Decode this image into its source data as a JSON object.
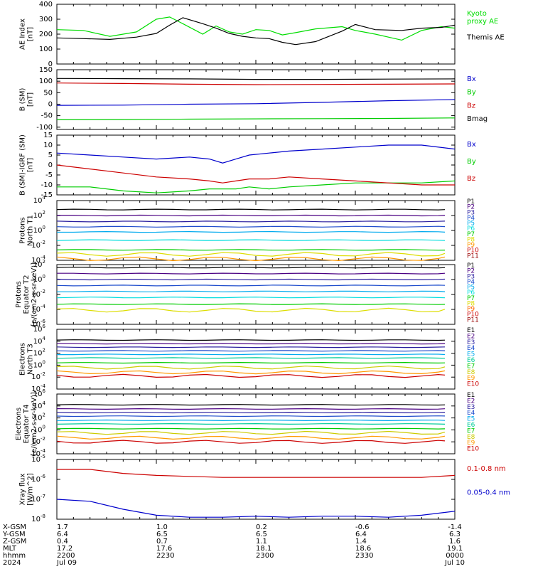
{
  "x_axis": {
    "row_labels": [
      "X-GSM",
      "Y-GSM",
      "Z-GSM",
      "MLT",
      "hhmm",
      "2024"
    ],
    "columns": [
      {
        "values": [
          "1.7",
          "6.4",
          "0.4",
          "17.2",
          "2200",
          "Jul 09"
        ]
      },
      {
        "values": [
          "1.0",
          "6.5",
          "0.7",
          "17.6",
          "2230",
          ""
        ]
      },
      {
        "values": [
          "0.2",
          "6.5",
          "1.1",
          "18.1",
          "2300",
          ""
        ]
      },
      {
        "values": [
          "-0.6",
          "6.4",
          "1.4",
          "18.6",
          "2330",
          ""
        ]
      },
      {
        "values": [
          "-1.4",
          "6.3",
          "1.6",
          "19.1",
          "0000",
          "Jul 10"
        ]
      }
    ]
  },
  "chart_data": [
    {
      "type": "line",
      "ylabel": "AE Index\n[nT]",
      "ylim": [
        0,
        400
      ],
      "yticks": [
        "0",
        "100",
        "200",
        "300",
        "400"
      ],
      "x": [
        0,
        8,
        16,
        24,
        30,
        34,
        38,
        44,
        48,
        52,
        56,
        60,
        64,
        68,
        72,
        78,
        86,
        90,
        96,
        104,
        110,
        116,
        120
      ],
      "series": [
        {
          "name": "Kyoto\nproxy AE",
          "color": "#00dd00",
          "values": [
            230,
            225,
            185,
            215,
            300,
            315,
            270,
            200,
            255,
            215,
            200,
            230,
            225,
            195,
            210,
            235,
            250,
            225,
            200,
            160,
            225,
            250,
            240
          ]
        },
        {
          "name": "Themis AE",
          "color": "#000000",
          "values": [
            175,
            170,
            165,
            180,
            205,
            260,
            310,
            270,
            240,
            205,
            185,
            175,
            170,
            145,
            130,
            150,
            220,
            265,
            230,
            225,
            240,
            245,
            260
          ]
        }
      ],
      "legend_placement": "right"
    },
    {
      "type": "line",
      "ylabel": "B (SM)\n[nT]",
      "ylim": [
        -110,
        150
      ],
      "yticks": [
        "-100",
        "-50",
        "0",
        "50",
        "100",
        "150"
      ],
      "x": [
        0,
        20,
        40,
        60,
        80,
        100,
        120
      ],
      "series": [
        {
          "name": "Bx",
          "color": "#0000cc",
          "values": [
            -5,
            -4,
            0,
            2,
            8,
            15,
            20
          ]
        },
        {
          "name": "By",
          "color": "#00cc00",
          "values": [
            -68,
            -67,
            -65,
            -64,
            -63,
            -62,
            -60
          ]
        },
        {
          "name": "Bz",
          "color": "#cc0000",
          "values": [
            92,
            90,
            87,
            85,
            86,
            87,
            88
          ]
        },
        {
          "name": "Bmag",
          "color": "#000000",
          "values": [
            112,
            111,
            110,
            108,
            108,
            109,
            110
          ]
        }
      ],
      "legend_placement": "right"
    },
    {
      "type": "line",
      "ylabel": "B (SM)-IGRF (SM)\n[nT]",
      "ylim": [
        -15,
        15
      ],
      "yticks": [
        "-15",
        "-10",
        "-5",
        "0",
        "5",
        "10",
        "15"
      ],
      "x": [
        0,
        10,
        20,
        30,
        40,
        46,
        50,
        54,
        58,
        64,
        70,
        80,
        90,
        100,
        110,
        120
      ],
      "series": [
        {
          "name": "Bx",
          "color": "#0000cc",
          "values": [
            6,
            5,
            4,
            3,
            4,
            3,
            1,
            3,
            5,
            6,
            7,
            8,
            9,
            10,
            10,
            8
          ]
        },
        {
          "name": "By",
          "color": "#00cc00",
          "values": [
            -11,
            -11,
            -13,
            -14,
            -13,
            -12,
            -12,
            -12,
            -11,
            -12,
            -11,
            -10,
            -9,
            -9,
            -9,
            -8
          ]
        },
        {
          "name": "Bz",
          "color": "#cc0000",
          "values": [
            0,
            -2,
            -4,
            -6,
            -7,
            -8,
            -9,
            -8,
            -7,
            -7,
            -6,
            -7,
            -8,
            -9,
            -10,
            -10
          ]
        }
      ],
      "legend_placement": "right"
    },
    {
      "type": "line",
      "ylabel": "Protons\nNorth T1",
      "log_scale": true,
      "ylim_exp": [
        -4,
        4
      ],
      "yticks": [
        "10^-4",
        "10^-2",
        "10^0",
        "10^2",
        "10^4"
      ],
      "legend": [
        "P1",
        "P2",
        "P3",
        "P4",
        "P5",
        "P6",
        "P7",
        "P8",
        "P9",
        "P10",
        "P11"
      ],
      "series": [
        {
          "name": "P1",
          "color": "#000000",
          "exp_level": 2.8
        },
        {
          "name": "P2",
          "color": "#4b0082",
          "exp_level": 2.0
        },
        {
          "name": "P3",
          "color": "#2b1f9f",
          "exp_level": 1.2
        },
        {
          "name": "P4",
          "color": "#1f4dcc",
          "exp_level": 0.5
        },
        {
          "name": "P5",
          "color": "#00aaee",
          "exp_level": -0.2
        },
        {
          "name": "P6",
          "color": "#00dddd",
          "exp_level": -1.3
        },
        {
          "name": "P7",
          "color": "#00cc00",
          "exp_level": -2.6
        },
        {
          "name": "P8",
          "color": "#dddd00",
          "exp_level": -3.2
        },
        {
          "name": "P9",
          "color": "#ff9900",
          "exp_level": -3.8
        },
        {
          "name": "P10",
          "color": "#cc0000",
          "exp_level": -4.5
        },
        {
          "name": "P11",
          "color": "#990000",
          "exp_level": -5.0
        }
      ]
    },
    {
      "type": "line",
      "ylabel": "Protons\nEquator T2\n[p/(cm2-s-sr-keV)]",
      "log_scale": true,
      "ylim_exp": [
        -6,
        2
      ],
      "yticks": [
        "10^-6",
        "10^-4",
        "10^-2",
        "10^0",
        "10^2"
      ],
      "legend": [
        "P1",
        "P2",
        "P3",
        "P4",
        "P5",
        "P6",
        "P7",
        "P8",
        "P9",
        "P10",
        "P11"
      ],
      "series": [
        {
          "name": "P1",
          "color": "#000000",
          "exp_level": 1.6
        },
        {
          "name": "P2",
          "color": "#4b0082",
          "exp_level": 0.8
        },
        {
          "name": "P3",
          "color": "#2b1f9f",
          "exp_level": 0.0
        },
        {
          "name": "P4",
          "color": "#1f4dcc",
          "exp_level": -0.8
        },
        {
          "name": "P5",
          "color": "#00aaee",
          "exp_level": -1.6
        },
        {
          "name": "P6",
          "color": "#00dddd",
          "exp_level": -2.4
        },
        {
          "name": "P7",
          "color": "#00cc00",
          "exp_level": -3.3
        },
        {
          "name": "P8",
          "color": "#dddd00",
          "exp_level": -4.1
        }
      ]
    },
    {
      "type": "line",
      "ylabel": "Electrons\nNorth T3",
      "log_scale": true,
      "ylim_exp": [
        -4,
        6
      ],
      "yticks": [
        "10^-4",
        "10^-2",
        "10^0",
        "10^2",
        "10^4",
        "10^6"
      ],
      "legend": [
        "E1",
        "E2",
        "E3",
        "E4",
        "E5",
        "E6",
        "E7",
        "E8",
        "E9",
        "E10"
      ],
      "series": [
        {
          "name": "E1",
          "color": "#000000",
          "exp_level": 4.2
        },
        {
          "name": "E2",
          "color": "#4b0082",
          "exp_level": 3.6
        },
        {
          "name": "E3",
          "color": "#2b1f9f",
          "exp_level": 3.0
        },
        {
          "name": "E4",
          "color": "#1f4dcc",
          "exp_level": 2.4
        },
        {
          "name": "E5",
          "color": "#00aaee",
          "exp_level": 1.8
        },
        {
          "name": "E6",
          "color": "#00cc99",
          "exp_level": 1.2
        },
        {
          "name": "E7",
          "color": "#00cc00",
          "exp_level": 0.4
        },
        {
          "name": "E8",
          "color": "#cccc00",
          "exp_level": -0.4
        },
        {
          "name": "E9",
          "color": "#ff9900",
          "exp_level": -1.2
        },
        {
          "name": "E10",
          "color": "#cc0000",
          "exp_level": -1.8
        }
      ]
    },
    {
      "type": "line",
      "ylabel": "Electrons\nEquator T4\n[e/(cm2-s-sr-keV)]",
      "log_scale": true,
      "ylim_exp": [
        -4,
        6
      ],
      "yticks": [
        "10^-4",
        "10^-2",
        "10^0",
        "10^2",
        "10^4",
        "10^6"
      ],
      "legend": [
        "E1",
        "E2",
        "E3",
        "E4",
        "E5",
        "E6",
        "E7",
        "E8",
        "E9",
        "E10"
      ],
      "series": [
        {
          "name": "E1",
          "color": "#000000",
          "exp_level": 4.2
        },
        {
          "name": "E2",
          "color": "#4b0082",
          "exp_level": 3.5
        },
        {
          "name": "E3",
          "color": "#2b1f9f",
          "exp_level": 2.9
        },
        {
          "name": "E4",
          "color": "#1f4dcc",
          "exp_level": 2.3
        },
        {
          "name": "E5",
          "color": "#00aaee",
          "exp_level": 1.6
        },
        {
          "name": "E6",
          "color": "#00cc99",
          "exp_level": 1.0
        },
        {
          "name": "E7",
          "color": "#00cc00",
          "exp_level": 0.2
        },
        {
          "name": "E8",
          "color": "#cccc00",
          "exp_level": -0.5
        },
        {
          "name": "E9",
          "color": "#ff9900",
          "exp_level": -1.3
        },
        {
          "name": "E10",
          "color": "#cc0000",
          "exp_level": -2.0
        }
      ]
    },
    {
      "type": "line",
      "ylabel": "Xray flux\n[W/m^2]",
      "log_scale": true,
      "ylim_exp": [
        -8,
        -5
      ],
      "yticks": [
        "10^-8",
        "10^-7",
        "10^-6",
        "10^-5"
      ],
      "x": [
        0,
        10,
        20,
        30,
        40,
        50,
        60,
        70,
        80,
        90,
        100,
        110,
        120
      ],
      "series": [
        {
          "name": "0.1-0.8 nm",
          "color": "#cc0000",
          "exp_values": [
            -5.5,
            -5.5,
            -5.7,
            -5.8,
            -5.85,
            -5.9,
            -5.9,
            -5.9,
            -5.9,
            -5.9,
            -5.9,
            -5.9,
            -5.8
          ]
        },
        {
          "name": "0.05-0.4 nm",
          "color": "#0000cc",
          "exp_values": [
            -7.0,
            -7.1,
            -7.5,
            -7.8,
            -7.9,
            -7.9,
            -7.85,
            -7.9,
            -7.85,
            -7.85,
            -7.9,
            -7.8,
            -7.6
          ]
        }
      ],
      "legend_placement": "right"
    }
  ]
}
